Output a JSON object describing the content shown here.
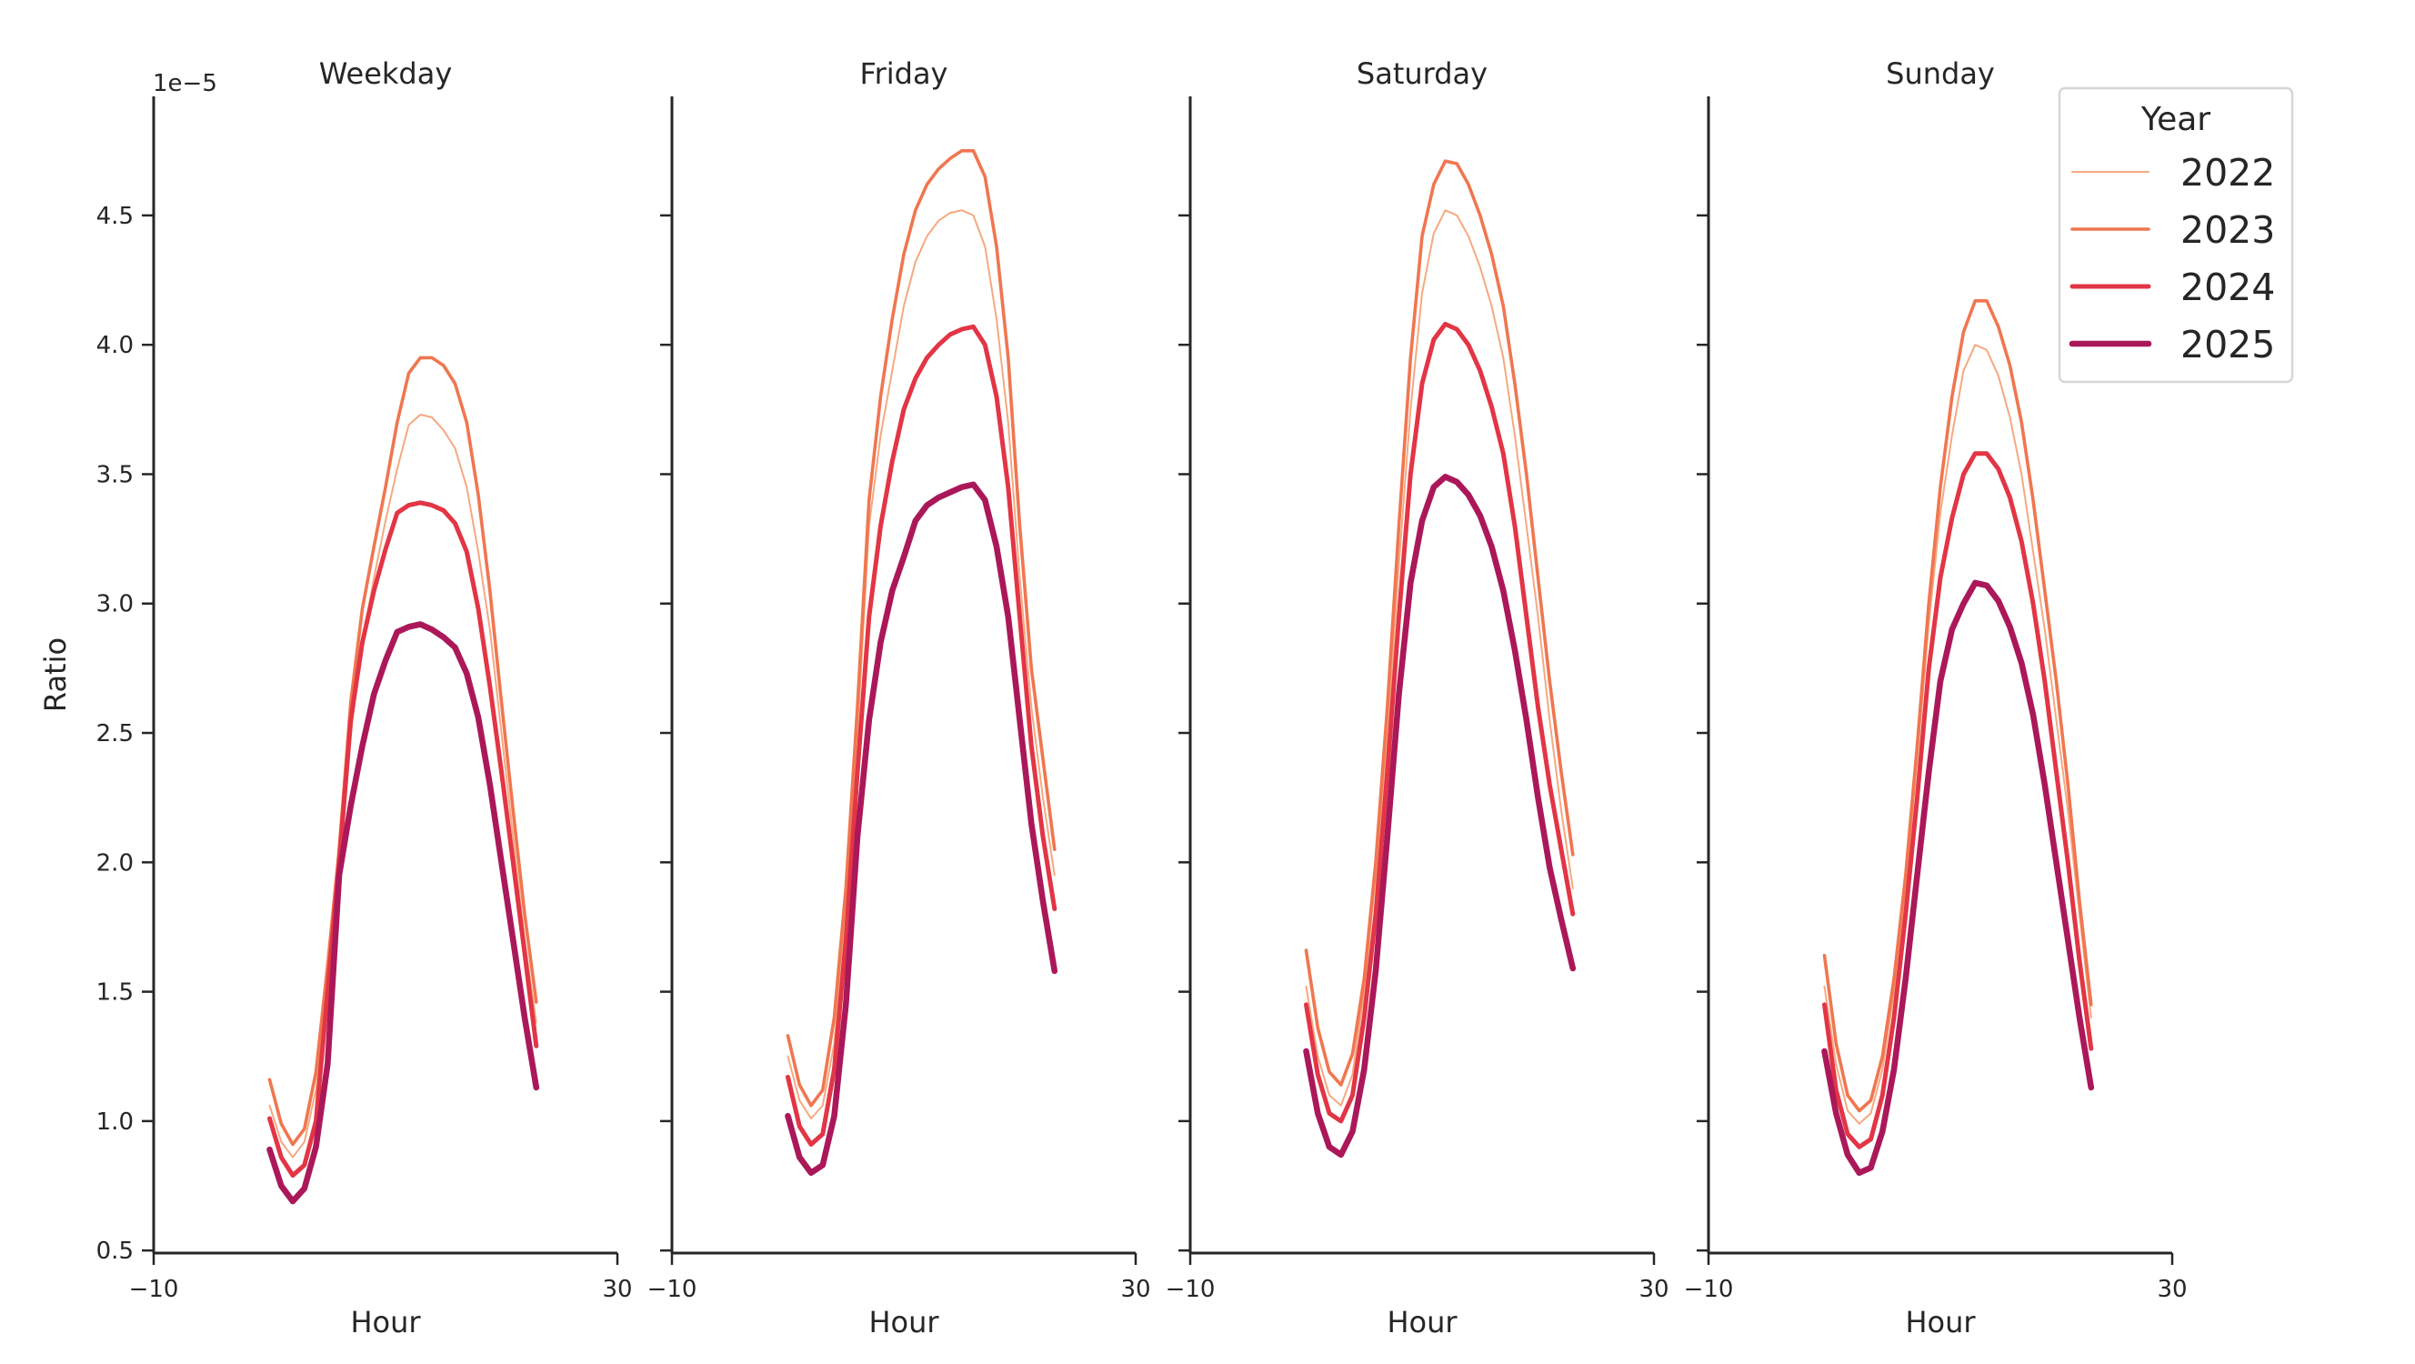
{
  "chart_data": {
    "type": "line",
    "ylabel": "Ratio",
    "y_offset_text": "1e−5",
    "ylim": [
      0.49,
      4.96
    ],
    "yticks": [
      0.5,
      1.0,
      1.5,
      2.0,
      2.5,
      3.0,
      3.5,
      4.0,
      4.5
    ],
    "ytick_labels": [
      "0.5",
      "1.0",
      "1.5",
      "2.0",
      "2.5",
      "3.0",
      "3.5",
      "4.0",
      "4.5"
    ],
    "xlim": [
      -10,
      30
    ],
    "xticks": [
      -10,
      30
    ],
    "xtick_labels": [
      "−10",
      "30"
    ],
    "xlabel": "Hour",
    "grid": false,
    "legend": {
      "title": "Year",
      "placement": "top-right",
      "entries": [
        "2022",
        "2023",
        "2024",
        "2025"
      ]
    },
    "series_style": {
      "2022": {
        "color": "#f6a880",
        "width": "thin"
      },
      "2023": {
        "color": "#f07650",
        "width": "medium"
      },
      "2024": {
        "color": "#e23545",
        "width": "thick"
      },
      "2025": {
        "color": "#ab1859",
        "width": "thickest"
      }
    },
    "x": [
      0,
      1,
      2,
      3,
      4,
      5,
      6,
      7,
      8,
      9,
      10,
      11,
      12,
      13,
      14,
      15,
      16,
      17,
      18,
      19,
      20,
      21,
      22,
      23
    ],
    "panels": [
      {
        "title": "Weekday",
        "series": [
          {
            "name": "2022",
            "values": [
              1.06,
              0.92,
              0.86,
              0.92,
              1.12,
              1.55,
              2.0,
              2.5,
              2.85,
              3.1,
              3.32,
              3.52,
              3.69,
              3.73,
              3.72,
              3.67,
              3.6,
              3.45,
              3.2,
              2.9,
              2.5,
              2.1,
              1.7,
              1.38
            ]
          },
          {
            "name": "2023",
            "values": [
              1.16,
              0.99,
              0.91,
              0.97,
              1.19,
              1.6,
              2.05,
              2.62,
              2.98,
              3.22,
              3.45,
              3.7,
              3.89,
              3.95,
              3.95,
              3.92,
              3.85,
              3.7,
              3.42,
              3.05,
              2.62,
              2.2,
              1.8,
              1.46
            ]
          },
          {
            "name": "2024",
            "values": [
              1.01,
              0.86,
              0.79,
              0.83,
              1.0,
              1.5,
              2.0,
              2.55,
              2.85,
              3.05,
              3.21,
              3.35,
              3.38,
              3.39,
              3.38,
              3.36,
              3.31,
              3.2,
              2.98,
              2.68,
              2.35,
              2.0,
              1.65,
              1.29
            ]
          },
          {
            "name": "2025",
            "values": [
              0.89,
              0.75,
              0.69,
              0.74,
              0.9,
              1.22,
              1.95,
              2.22,
              2.45,
              2.65,
              2.78,
              2.89,
              2.91,
              2.92,
              2.9,
              2.87,
              2.83,
              2.73,
              2.56,
              2.3,
              2.0,
              1.7,
              1.4,
              1.13
            ]
          }
        ]
      },
      {
        "title": "Friday",
        "series": [
          {
            "name": "2022",
            "values": [
              1.25,
              1.08,
              1.01,
              1.06,
              1.3,
              1.8,
              2.5,
              3.3,
              3.65,
              3.9,
              4.15,
              4.32,
              4.42,
              4.48,
              4.51,
              4.52,
              4.5,
              4.38,
              4.1,
              3.7,
              3.1,
              2.6,
              2.25,
              1.95
            ]
          },
          {
            "name": "2023",
            "values": [
              1.33,
              1.14,
              1.06,
              1.12,
              1.4,
              1.9,
              2.6,
              3.4,
              3.8,
              4.1,
              4.35,
              4.52,
              4.62,
              4.68,
              4.72,
              4.75,
              4.75,
              4.65,
              4.38,
              3.95,
              3.3,
              2.75,
              2.4,
              2.05
            ]
          },
          {
            "name": "2024",
            "values": [
              1.17,
              0.98,
              0.91,
              0.95,
              1.2,
              1.7,
              2.35,
              2.95,
              3.3,
              3.55,
              3.75,
              3.87,
              3.95,
              4.0,
              4.04,
              4.06,
              4.07,
              4.0,
              3.8,
              3.45,
              2.95,
              2.45,
              2.1,
              1.82
            ]
          },
          {
            "name": "2025",
            "values": [
              1.02,
              0.86,
              0.8,
              0.83,
              1.02,
              1.45,
              2.1,
              2.55,
              2.85,
              3.05,
              3.18,
              3.32,
              3.38,
              3.41,
              3.43,
              3.45,
              3.46,
              3.4,
              3.22,
              2.95,
              2.55,
              2.15,
              1.85,
              1.58
            ]
          }
        ]
      },
      {
        "title": "Saturday",
        "series": [
          {
            "name": "2022",
            "values": [
              1.52,
              1.25,
              1.1,
              1.06,
              1.18,
              1.5,
              1.95,
              2.5,
              3.15,
              3.75,
              4.2,
              4.43,
              4.52,
              4.5,
              4.42,
              4.3,
              4.15,
              3.95,
              3.65,
              3.3,
              2.95,
              2.55,
              2.2,
              1.9
            ]
          },
          {
            "name": "2023",
            "values": [
              1.66,
              1.36,
              1.19,
              1.14,
              1.26,
              1.55,
              2.0,
              2.6,
              3.3,
              3.95,
              4.42,
              4.62,
              4.71,
              4.7,
              4.62,
              4.5,
              4.35,
              4.15,
              3.85,
              3.5,
              3.1,
              2.7,
              2.35,
              2.03
            ]
          },
          {
            "name": "2024",
            "values": [
              1.45,
              1.18,
              1.03,
              1.0,
              1.1,
              1.4,
              1.8,
              2.35,
              2.95,
              3.5,
              3.85,
              4.02,
              4.08,
              4.06,
              4.0,
              3.9,
              3.76,
              3.58,
              3.3,
              2.95,
              2.6,
              2.3,
              2.05,
              1.8
            ]
          },
          {
            "name": "2025",
            "values": [
              1.27,
              1.03,
              0.9,
              0.87,
              0.96,
              1.2,
              1.58,
              2.1,
              2.65,
              3.08,
              3.32,
              3.45,
              3.49,
              3.47,
              3.42,
              3.34,
              3.22,
              3.05,
              2.82,
              2.55,
              2.25,
              1.98,
              1.78,
              1.59
            ]
          }
        ]
      },
      {
        "title": "Sunday",
        "series": [
          {
            "name": "2022",
            "values": [
              1.52,
              1.22,
              1.04,
              0.99,
              1.03,
              1.2,
              1.5,
              1.9,
              2.4,
              2.92,
              3.35,
              3.65,
              3.9,
              4.0,
              3.98,
              3.88,
              3.72,
              3.5,
              3.2,
              2.9,
              2.55,
              2.2,
              1.8,
              1.4
            ]
          },
          {
            "name": "2023",
            "values": [
              1.64,
              1.3,
              1.1,
              1.04,
              1.08,
              1.25,
              1.55,
              1.95,
              2.45,
              3.0,
              3.45,
              3.8,
              4.05,
              4.17,
              4.17,
              4.07,
              3.92,
              3.7,
              3.4,
              3.05,
              2.7,
              2.3,
              1.85,
              1.45
            ]
          },
          {
            "name": "2024",
            "values": [
              1.45,
              1.12,
              0.95,
              0.9,
              0.93,
              1.1,
              1.4,
              1.8,
              2.25,
              2.75,
              3.1,
              3.33,
              3.5,
              3.58,
              3.58,
              3.52,
              3.41,
              3.24,
              3.0,
              2.7,
              2.35,
              2.0,
              1.62,
              1.28
            ]
          },
          {
            "name": "2025",
            "values": [
              1.27,
              1.03,
              0.87,
              0.8,
              0.82,
              0.96,
              1.2,
              1.55,
              1.95,
              2.35,
              2.7,
              2.9,
              3.0,
              3.08,
              3.07,
              3.01,
              2.91,
              2.77,
              2.57,
              2.3,
              2.0,
              1.7,
              1.4,
              1.13
            ]
          }
        ]
      }
    ]
  }
}
